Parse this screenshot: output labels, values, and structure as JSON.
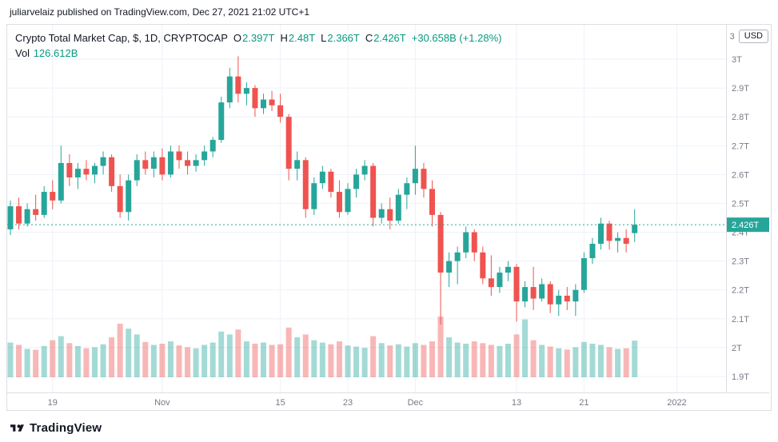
{
  "topbar": {
    "text": "juliarvelaiz published on TradingView.com, Dec 27, 2021 21:02 UTC+1"
  },
  "legend": {
    "title": "Crypto Total Market Cap, $, 1D, CRYPTOCAP",
    "o_label": "O",
    "o_value": "2.397T",
    "h_label": "H",
    "h_value": "2.48T",
    "l_label": "L",
    "l_value": "2.366T",
    "c_label": "C",
    "c_value": "2.426T",
    "change": "+30.658B (+1.28%)",
    "vol_label": "Vol",
    "vol_value": "126.612B"
  },
  "axis": {
    "top_tick": "3",
    "unit": "USD"
  },
  "footer": {
    "brand": "TradingView"
  },
  "colors": {
    "up": "#26a69a",
    "down": "#ef5350",
    "legend_value": "#089981",
    "grid": "#eef1f8",
    "axis_text": "#787b86",
    "separator": "#dcdee3",
    "price_tag_bg": "#26a69a",
    "price_line": "#26a69a"
  },
  "chart_data": {
    "type": "candlestick",
    "title": "Crypto Total Market Cap, $, 1D, CRYPTOCAP",
    "symbol": "CRYPTOCAP",
    "timeframe": "1D",
    "units": "USD trillions",
    "ylim": [
      1.9,
      3.0
    ],
    "grid": true,
    "start_date": "2021-10-14",
    "end_date": "2021-12-27",
    "candles": [
      [
        2.41,
        2.51,
        2.39,
        2.49
      ],
      [
        2.49,
        2.52,
        2.41,
        2.43
      ],
      [
        2.43,
        2.5,
        2.42,
        2.48
      ],
      [
        2.48,
        2.53,
        2.44,
        2.46
      ],
      [
        2.46,
        2.56,
        2.45,
        2.54
      ],
      [
        2.54,
        2.58,
        2.48,
        2.51
      ],
      [
        2.51,
        2.7,
        2.5,
        2.64
      ],
      [
        2.64,
        2.67,
        2.56,
        2.59
      ],
      [
        2.59,
        2.64,
        2.55,
        2.62
      ],
      [
        2.62,
        2.65,
        2.58,
        2.6
      ],
      [
        2.6,
        2.64,
        2.57,
        2.63
      ],
      [
        2.63,
        2.68,
        2.6,
        2.66
      ],
      [
        2.66,
        2.67,
        2.54,
        2.56
      ],
      [
        2.56,
        2.6,
        2.45,
        2.47
      ],
      [
        2.47,
        2.6,
        2.44,
        2.58
      ],
      [
        2.58,
        2.67,
        2.56,
        2.65
      ],
      [
        2.65,
        2.68,
        2.6,
        2.62
      ],
      [
        2.62,
        2.68,
        2.59,
        2.66
      ],
      [
        2.66,
        2.69,
        2.58,
        2.6
      ],
      [
        2.6,
        2.7,
        2.59,
        2.68
      ],
      [
        2.68,
        2.7,
        2.62,
        2.65
      ],
      [
        2.65,
        2.68,
        2.6,
        2.63
      ],
      [
        2.63,
        2.67,
        2.61,
        2.65
      ],
      [
        2.65,
        2.7,
        2.63,
        2.68
      ],
      [
        2.68,
        2.73,
        2.66,
        2.72
      ],
      [
        2.72,
        2.87,
        2.71,
        2.85
      ],
      [
        2.85,
        2.97,
        2.83,
        2.94
      ],
      [
        2.94,
        3.01,
        2.85,
        2.88
      ],
      [
        2.88,
        2.92,
        2.84,
        2.9
      ],
      [
        2.9,
        2.91,
        2.8,
        2.83
      ],
      [
        2.83,
        2.88,
        2.81,
        2.86
      ],
      [
        2.86,
        2.89,
        2.82,
        2.84
      ],
      [
        2.84,
        2.88,
        2.78,
        2.8
      ],
      [
        2.8,
        2.81,
        2.58,
        2.62
      ],
      [
        2.62,
        2.68,
        2.58,
        2.65
      ],
      [
        2.65,
        2.66,
        2.45,
        2.48
      ],
      [
        2.48,
        2.59,
        2.46,
        2.57
      ],
      [
        2.57,
        2.63,
        2.55,
        2.61
      ],
      [
        2.61,
        2.62,
        2.52,
        2.54
      ],
      [
        2.54,
        2.58,
        2.45,
        2.47
      ],
      [
        2.47,
        2.57,
        2.46,
        2.55
      ],
      [
        2.55,
        2.62,
        2.52,
        2.6
      ],
      [
        2.6,
        2.65,
        2.58,
        2.63
      ],
      [
        2.63,
        2.64,
        2.42,
        2.45
      ],
      [
        2.45,
        2.5,
        2.43,
        2.48
      ],
      [
        2.48,
        2.52,
        2.41,
        2.44
      ],
      [
        2.44,
        2.55,
        2.43,
        2.53
      ],
      [
        2.53,
        2.59,
        2.48,
        2.57
      ],
      [
        2.57,
        2.7,
        2.53,
        2.62
      ],
      [
        2.62,
        2.64,
        2.52,
        2.55
      ],
      [
        2.55,
        2.58,
        2.42,
        2.46
      ],
      [
        2.46,
        2.47,
        2.08,
        2.26
      ],
      [
        2.26,
        2.33,
        2.21,
        2.3
      ],
      [
        2.3,
        2.35,
        2.22,
        2.33
      ],
      [
        2.33,
        2.42,
        2.31,
        2.4
      ],
      [
        2.4,
        2.41,
        2.3,
        2.33
      ],
      [
        2.33,
        2.35,
        2.22,
        2.24
      ],
      [
        2.24,
        2.32,
        2.18,
        2.21
      ],
      [
        2.21,
        2.28,
        2.19,
        2.26
      ],
      [
        2.26,
        2.3,
        2.23,
        2.28
      ],
      [
        2.28,
        2.29,
        2.09,
        2.16
      ],
      [
        2.16,
        2.23,
        2.14,
        2.21
      ],
      [
        2.21,
        2.28,
        2.13,
        2.17
      ],
      [
        2.17,
        2.24,
        2.16,
        2.22
      ],
      [
        2.22,
        2.23,
        2.12,
        2.15
      ],
      [
        2.15,
        2.2,
        2.11,
        2.18
      ],
      [
        2.18,
        2.21,
        2.13,
        2.16
      ],
      [
        2.16,
        2.22,
        2.11,
        2.2
      ],
      [
        2.2,
        2.33,
        2.19,
        2.31
      ],
      [
        2.31,
        2.38,
        2.29,
        2.36
      ],
      [
        2.36,
        2.45,
        2.34,
        2.43
      ],
      [
        2.43,
        2.44,
        2.34,
        2.37
      ],
      [
        2.37,
        2.4,
        2.33,
        2.38
      ],
      [
        2.38,
        2.41,
        2.33,
        2.36
      ],
      [
        2.397,
        2.48,
        2.366,
        2.426
      ]
    ],
    "volumes": [
      120,
      112,
      98,
      95,
      108,
      128,
      142,
      118,
      108,
      100,
      104,
      114,
      138,
      185,
      168,
      148,
      122,
      112,
      116,
      124,
      110,
      104,
      100,
      112,
      120,
      158,
      148,
      165,
      124,
      116,
      120,
      112,
      114,
      172,
      138,
      148,
      128,
      120,
      114,
      124,
      110,
      106,
      102,
      142,
      118,
      110,
      114,
      106,
      118,
      112,
      124,
      210,
      138,
      120,
      116,
      124,
      118,
      112,
      108,
      116,
      148,
      200,
      128,
      112,
      106,
      100,
      96,
      104,
      122,
      116,
      112,
      104,
      98,
      100,
      126.612
    ],
    "y_ticks": [
      {
        "label": "3T",
        "value": 3.0
      },
      {
        "label": "2.9T",
        "value": 2.9
      },
      {
        "label": "2.8T",
        "value": 2.8
      },
      {
        "label": "2.7T",
        "value": 2.7
      },
      {
        "label": "2.6T",
        "value": 2.6
      },
      {
        "label": "2.5T",
        "value": 2.5
      },
      {
        "label": "2.4T",
        "value": 2.4
      },
      {
        "label": "2.3T",
        "value": 2.3
      },
      {
        "label": "2.2T",
        "value": 2.2
      },
      {
        "label": "2.1T",
        "value": 2.1
      },
      {
        "label": "2T",
        "value": 2.0
      },
      {
        "label": "1.9T",
        "value": 1.9
      }
    ],
    "x_ticks": [
      {
        "label": "19",
        "index": 5
      },
      {
        "label": "Nov",
        "index": 18
      },
      {
        "label": "15",
        "index": 32
      },
      {
        "label": "23",
        "index": 40
      },
      {
        "label": "Dec",
        "index": 48
      },
      {
        "label": "13",
        "index": 60
      },
      {
        "label": "21",
        "index": 68
      },
      {
        "label": "2022",
        "index": 79
      }
    ],
    "current_price": {
      "value": 2.426,
      "label": "2.426T"
    },
    "last_bar": {
      "open": "2.397T",
      "high": "2.48T",
      "low": "2.366T",
      "close": "2.426T",
      "change": "+30.658B (+1.28%)",
      "volume": "126.612B"
    }
  }
}
